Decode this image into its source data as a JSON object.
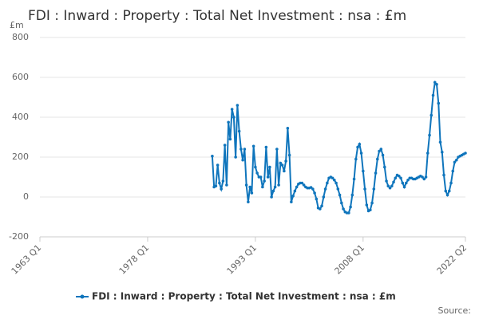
{
  "chart_data": {
    "type": "line",
    "title": "FDI : Inward : Property : Total Net Investment : nsa : £m",
    "y_label": "£m",
    "source_label": "Source:",
    "x": [
      "1987 Q1",
      "1987 Q2",
      "1987 Q3",
      "1987 Q4",
      "1988 Q1",
      "1988 Q2",
      "1988 Q3",
      "1988 Q4",
      "1989 Q1",
      "1989 Q2",
      "1989 Q3",
      "1989 Q4",
      "1990 Q1",
      "1990 Q2",
      "1990 Q3",
      "1990 Q4",
      "1991 Q1",
      "1991 Q2",
      "1991 Q3",
      "1991 Q4",
      "1992 Q1",
      "1992 Q2",
      "1992 Q3",
      "1992 Q4",
      "1993 Q1",
      "1993 Q2",
      "1993 Q3",
      "1993 Q4",
      "1994 Q1",
      "1994 Q2",
      "1994 Q3",
      "1994 Q4",
      "1995 Q1",
      "1995 Q2",
      "1995 Q3",
      "1995 Q4",
      "1996 Q1",
      "1996 Q2",
      "1996 Q3",
      "1996 Q4",
      "1997 Q1",
      "1997 Q2",
      "1997 Q3",
      "1997 Q4",
      "1998 Q1",
      "1998 Q2",
      "1998 Q3",
      "1998 Q4",
      "1999 Q1",
      "1999 Q2",
      "1999 Q3",
      "1999 Q4",
      "2000 Q1",
      "2000 Q2",
      "2000 Q3",
      "2000 Q4",
      "2001 Q1",
      "2001 Q2",
      "2001 Q3",
      "2001 Q4",
      "2002 Q1",
      "2002 Q2",
      "2002 Q3",
      "2002 Q4",
      "2003 Q1",
      "2003 Q2",
      "2003 Q3",
      "2003 Q4",
      "2004 Q1",
      "2004 Q2",
      "2004 Q3",
      "2004 Q4",
      "2005 Q1",
      "2005 Q2",
      "2005 Q3",
      "2005 Q4",
      "2006 Q1",
      "2006 Q2",
      "2006 Q3",
      "2006 Q4",
      "2007 Q1",
      "2007 Q2",
      "2007 Q3",
      "2007 Q4",
      "2008 Q1",
      "2008 Q2",
      "2008 Q3",
      "2008 Q4",
      "2009 Q1",
      "2009 Q2",
      "2009 Q3",
      "2009 Q4",
      "2010 Q1",
      "2010 Q2",
      "2010 Q3",
      "2010 Q4",
      "2011 Q1",
      "2011 Q2",
      "2011 Q3",
      "2011 Q4",
      "2012 Q1",
      "2012 Q2",
      "2012 Q3",
      "2012 Q4",
      "2013 Q1",
      "2013 Q2",
      "2013 Q3",
      "2013 Q4",
      "2014 Q1",
      "2014 Q2",
      "2014 Q3",
      "2014 Q4",
      "2015 Q1",
      "2015 Q2",
      "2015 Q3",
      "2015 Q4",
      "2016 Q1",
      "2016 Q2",
      "2016 Q3",
      "2016 Q4",
      "2017 Q1",
      "2017 Q2",
      "2017 Q3",
      "2017 Q4",
      "2018 Q1",
      "2018 Q2",
      "2018 Q3",
      "2018 Q4",
      "2019 Q1",
      "2019 Q2",
      "2019 Q3",
      "2019 Q4",
      "2020 Q1",
      "2020 Q2",
      "2020 Q3",
      "2020 Q4",
      "2021 Q1",
      "2021 Q2",
      "2021 Q3",
      "2021 Q4",
      "2022 Q1",
      "2022 Q2"
    ],
    "series": [
      {
        "name": "FDI : Inward : Property : Total Net Investment : nsa : £m",
        "color": "#0f75bc",
        "values": [
          205,
          50,
          55,
          160,
          70,
          40,
          80,
          260,
          60,
          375,
          290,
          440,
          400,
          200,
          460,
          330,
          240,
          185,
          240,
          60,
          -25,
          50,
          20,
          255,
          150,
          120,
          100,
          100,
          50,
          80,
          250,
          100,
          150,
          0,
          30,
          50,
          240,
          60,
          170,
          160,
          130,
          180,
          345,
          210,
          -25,
          5,
          30,
          50,
          65,
          70,
          70,
          60,
          50,
          45,
          45,
          48,
          40,
          20,
          -10,
          -55,
          -60,
          -45,
          0,
          40,
          70,
          95,
          100,
          95,
          85,
          70,
          40,
          10,
          -30,
          -60,
          -75,
          -80,
          -80,
          -50,
          10,
          90,
          190,
          250,
          265,
          220,
          130,
          40,
          -40,
          -70,
          -65,
          -30,
          40,
          120,
          190,
          230,
          240,
          210,
          150,
          80,
          55,
          45,
          55,
          75,
          95,
          110,
          105,
          95,
          70,
          50,
          70,
          85,
          95,
          95,
          90,
          90,
          95,
          100,
          105,
          100,
          90,
          100,
          220,
          310,
          410,
          510,
          575,
          565,
          470,
          275,
          225,
          110,
          30,
          10,
          30,
          70,
          130,
          175,
          185,
          200,
          205,
          210,
          215,
          220
        ]
      }
    ],
    "xlim": [
      "1963 Q1",
      "2022 Q2"
    ],
    "xticks": [
      "1963 Q1",
      "1978 Q1",
      "1993 Q1",
      "2008 Q1",
      "2022 Q2"
    ],
    "ylim": [
      -200,
      800
    ],
    "yticks": [
      -200,
      0,
      200,
      400,
      600,
      800
    ],
    "grid": true,
    "legend": "bottom"
  }
}
